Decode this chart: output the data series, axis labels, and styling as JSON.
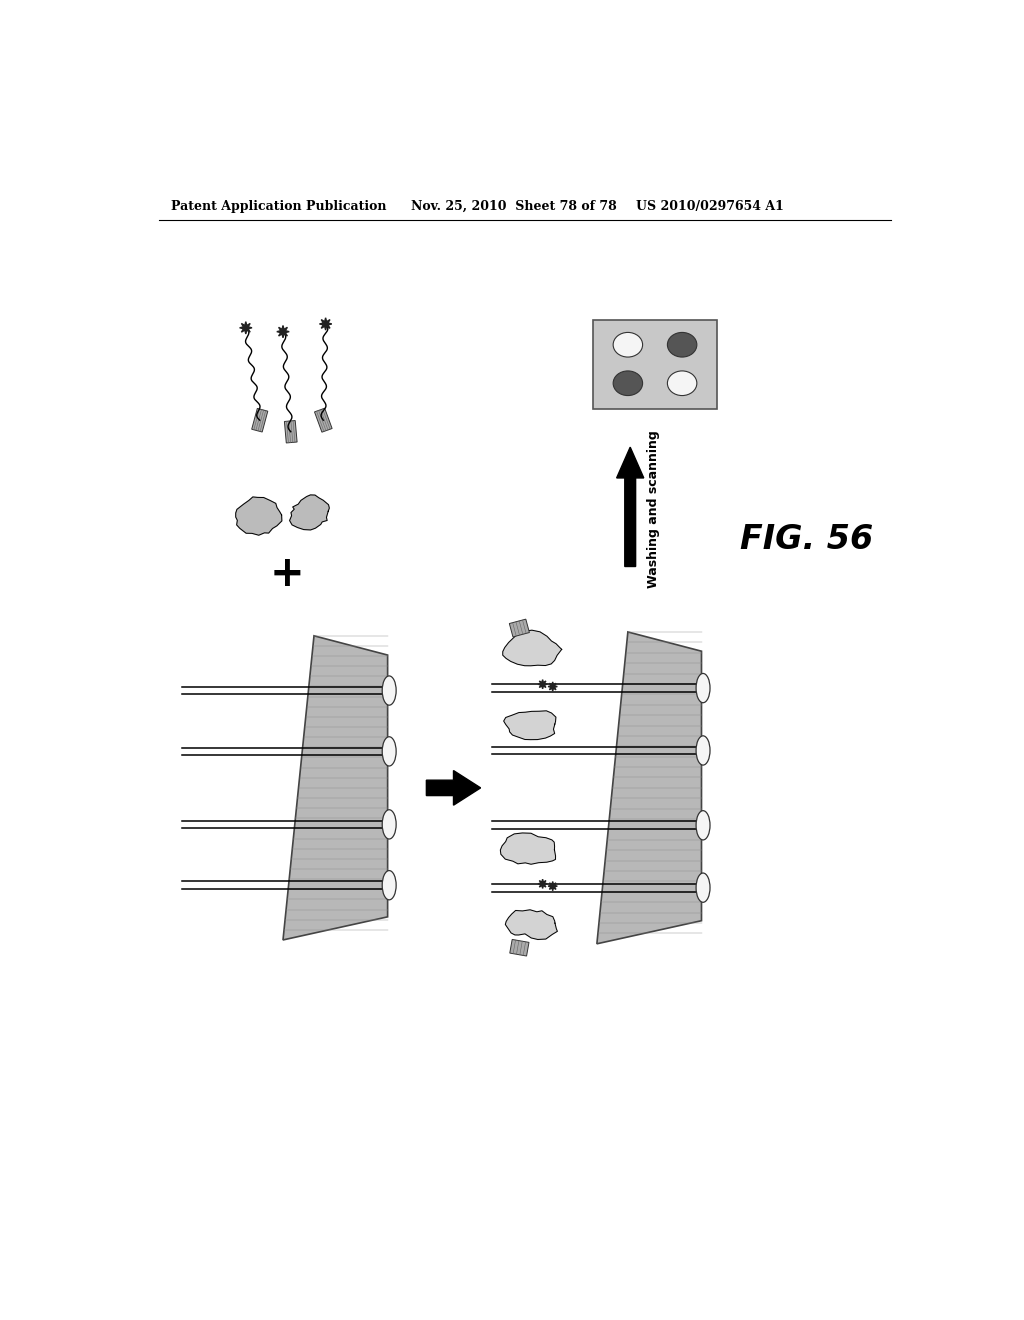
{
  "header_left": "Patent Application Publication",
  "header_mid": "Nov. 25, 2010  Sheet 78 of 78",
  "header_right": "US 2010/0297654 A1",
  "fig_label": "FIG. 56",
  "washing_label": "Washing and scanning",
  "bg_color": "#ffffff",
  "gray_fiber": "#b8b8b8",
  "gray_chip": "#c0c0c0",
  "dark_spot": "#555555",
  "white_spot": "#f5f5f5"
}
